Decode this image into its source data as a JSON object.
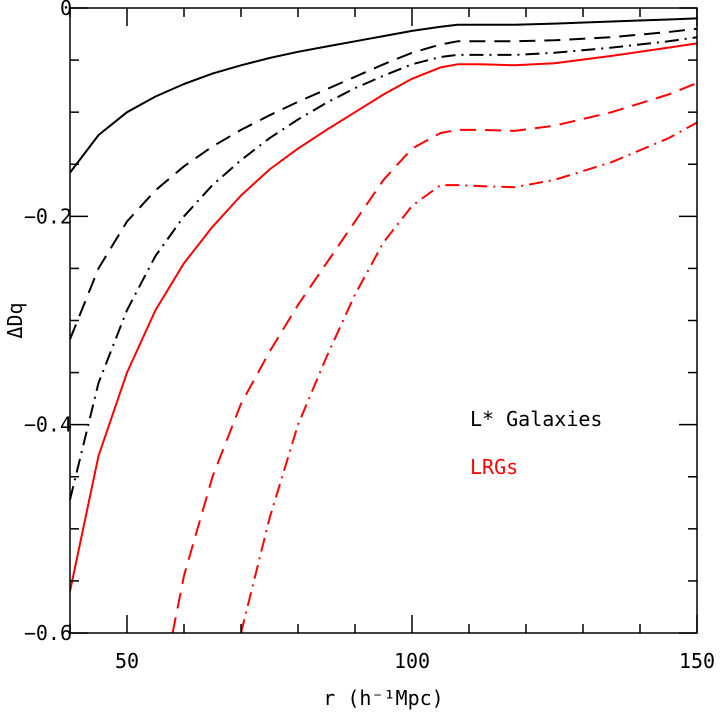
{
  "chart_data": {
    "type": "line",
    "xlabel": "r (h⁻¹Mpc)",
    "ylabel": "ΔDq",
    "xlim": [
      40,
      150
    ],
    "ylim": [
      -0.6,
      0
    ],
    "x_ticks": [
      50,
      100,
      150
    ],
    "x_tick_labels": [
      "50",
      "100",
      "150"
    ],
    "y_ticks": [
      0,
      -0.2,
      -0.4,
      -0.6
    ],
    "y_tick_labels": [
      "0",
      "−0.2",
      "−0.4",
      "−0.6"
    ],
    "grid": false,
    "legend": {
      "placement": "right-center",
      "entries": [
        {
          "label": "L* Galaxies",
          "color": "#000000"
        },
        {
          "label": "LRGs",
          "color": "#ff0000"
        }
      ]
    },
    "series": [
      {
        "color": "#000000",
        "style": "solid",
        "x": [
          40,
          45,
          50,
          55,
          60,
          65,
          70,
          75,
          80,
          85,
          90,
          95,
          100,
          105,
          108,
          112,
          118,
          125,
          135,
          145,
          150
        ],
        "y": [
          -0.158,
          -0.122,
          -0.1,
          -0.085,
          -0.073,
          -0.063,
          -0.055,
          -0.048,
          -0.042,
          -0.037,
          -0.032,
          -0.027,
          -0.022,
          -0.018,
          -0.016,
          -0.016,
          -0.016,
          -0.015,
          -0.013,
          -0.011,
          -0.01
        ]
      },
      {
        "color": "#000000",
        "style": "dashed",
        "x": [
          40,
          45,
          50,
          55,
          60,
          65,
          70,
          75,
          80,
          85,
          90,
          95,
          100,
          105,
          108,
          112,
          118,
          125,
          135,
          145,
          150
        ],
        "y": [
          -0.318,
          -0.25,
          -0.205,
          -0.175,
          -0.152,
          -0.133,
          -0.117,
          -0.103,
          -0.09,
          -0.078,
          -0.066,
          -0.054,
          -0.043,
          -0.035,
          -0.032,
          -0.032,
          -0.032,
          -0.031,
          -0.028,
          -0.023,
          -0.02
        ]
      },
      {
        "color": "#000000",
        "style": "dashdot",
        "x": [
          40,
          45,
          50,
          55,
          60,
          65,
          70,
          75,
          80,
          85,
          90,
          95,
          100,
          105,
          108,
          112,
          118,
          125,
          135,
          145,
          150
        ],
        "y": [
          -0.472,
          -0.36,
          -0.29,
          -0.238,
          -0.2,
          -0.17,
          -0.146,
          -0.125,
          -0.107,
          -0.091,
          -0.077,
          -0.065,
          -0.054,
          -0.047,
          -0.045,
          -0.045,
          -0.045,
          -0.043,
          -0.038,
          -0.032,
          -0.028
        ]
      },
      {
        "color": "#ff0000",
        "style": "solid",
        "x": [
          40,
          45,
          50,
          55,
          60,
          65,
          70,
          75,
          80,
          85,
          90,
          95,
          100,
          105,
          108,
          112,
          118,
          125,
          135,
          145,
          150
        ],
        "y": [
          -0.56,
          -0.43,
          -0.35,
          -0.29,
          -0.245,
          -0.21,
          -0.18,
          -0.155,
          -0.135,
          -0.117,
          -0.1,
          -0.083,
          -0.068,
          -0.057,
          -0.054,
          -0.054,
          -0.055,
          -0.053,
          -0.046,
          -0.038,
          -0.034
        ]
      },
      {
        "color": "#ff0000",
        "style": "dashed",
        "x": [
          58,
          60,
          65,
          70,
          75,
          80,
          85,
          90,
          95,
          100,
          105,
          108,
          112,
          118,
          125,
          135,
          145,
          150
        ],
        "y": [
          -0.6,
          -0.545,
          -0.45,
          -0.38,
          -0.33,
          -0.285,
          -0.245,
          -0.205,
          -0.165,
          -0.135,
          -0.12,
          -0.117,
          -0.117,
          -0.118,
          -0.113,
          -0.1,
          -0.083,
          -0.072
        ]
      },
      {
        "color": "#ff0000",
        "style": "dashdot",
        "x": [
          70,
          75,
          80,
          85,
          90,
          95,
          100,
          105,
          108,
          112,
          118,
          125,
          135,
          145,
          150
        ],
        "y": [
          -0.6,
          -0.49,
          -0.4,
          -0.335,
          -0.275,
          -0.225,
          -0.19,
          -0.17,
          -0.17,
          -0.171,
          -0.172,
          -0.165,
          -0.148,
          -0.125,
          -0.11
        ]
      }
    ]
  }
}
